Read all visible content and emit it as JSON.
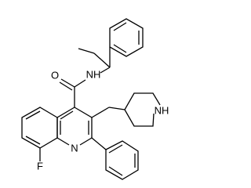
{
  "atoms": {
    "carbonyl_oxygen": "O",
    "amide_nitrogen": "NH",
    "quinoline_nitrogen": "N",
    "fluorine": "F",
    "piperidine_nitrogen": "NH"
  }
}
